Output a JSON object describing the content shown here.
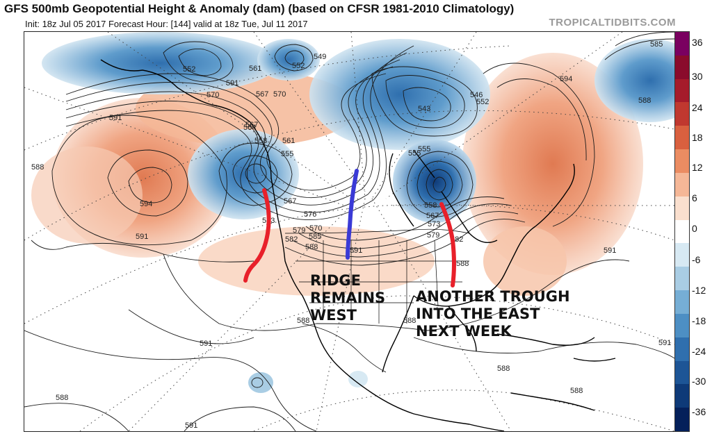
{
  "header": {
    "title": "GFS 500mb Geopotential Height & Anomaly (dam) (based on CFSR 1981-2010 Climatology)",
    "subtitle": "Init: 18z Jul 05 2017   Forecast Hour: [144]   valid at 18z Tue, Jul 11 2017",
    "brand": "TROPICALTIDBITS.COM"
  },
  "colorbar": {
    "labels": [
      "36",
      "30",
      "24",
      "18",
      "12",
      "6",
      "0",
      "-6",
      "-12",
      "-18",
      "-24",
      "-30",
      "-36"
    ],
    "colors": [
      "#7a0060",
      "#8a0b2c",
      "#a51b2b",
      "#c0382f",
      "#d9603f",
      "#eb8c62",
      "#f5b797",
      "#fadfce",
      "#ffffff",
      "#d7e9f3",
      "#a9cde4",
      "#76aed5",
      "#4d8fc4",
      "#2f6fae",
      "#1d5596",
      "#0e3a78",
      "#04205a"
    ]
  },
  "contour_labels": [
    "552",
    "561",
    "567",
    "570",
    "549",
    "552",
    "546",
    "552",
    "543",
    "555",
    "591",
    "594",
    "585",
    "588",
    "570",
    "567",
    "564",
    "558",
    "561",
    "555",
    "591",
    "594",
    "588",
    "591",
    "567",
    "573",
    "570",
    "576",
    "579",
    "582",
    "585",
    "588",
    "591",
    "555",
    "558",
    "567",
    "573",
    "579",
    "582",
    "588",
    "591",
    "588",
    "588",
    "591",
    "591",
    "588",
    "588",
    "591",
    "588"
  ],
  "annotations": {
    "ridge": [
      "RIDGE",
      "REMAINS",
      "WEST"
    ],
    "trough": [
      "ANOTHER TROUGH",
      "INTO THE EAST",
      "NEXT WEEK"
    ]
  }
}
